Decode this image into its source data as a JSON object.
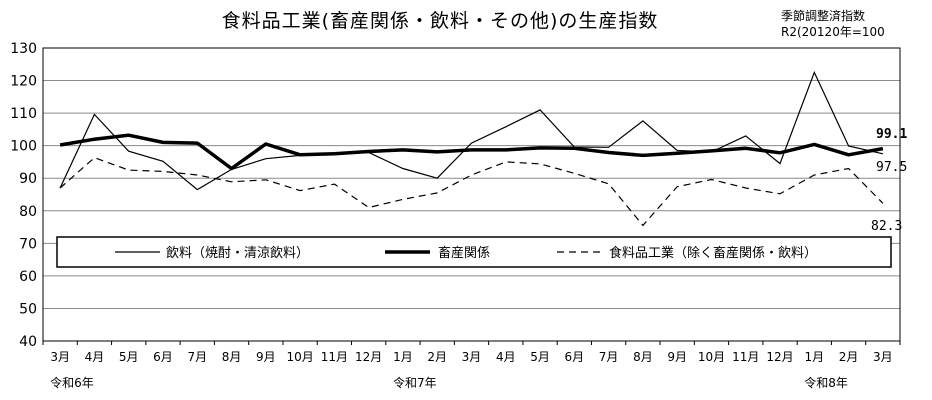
{
  "chart_data": {
    "type": "line",
    "title": "食料品工業(畜産関係・飲料・その他)の生産指数",
    "notes": [
      "季節調整済指数",
      "R2(20120年=100"
    ],
    "ylim": [
      40,
      130
    ],
    "yticks": [
      40,
      50,
      60,
      70,
      80,
      90,
      100,
      110,
      120,
      130
    ],
    "grid": true,
    "legend": "inside-top",
    "x": [
      "3月",
      "4月",
      "5月",
      "6月",
      "7月",
      "8月",
      "9月",
      "10月",
      "11月",
      "12月",
      "1月",
      "2月",
      "3月",
      "4月",
      "5月",
      "6月",
      "7月",
      "8月",
      "9月",
      "10月",
      "11月",
      "12月",
      "1月",
      "2月",
      "3月"
    ],
    "era_labels": [
      {
        "index": 0,
        "label": "令和6年"
      },
      {
        "index": 10,
        "label": "令和7年"
      },
      {
        "index": 22,
        "label": "令和8年"
      }
    ],
    "series": [
      {
        "name": "飲料（焼酎・清涼飲料）",
        "style": "thin",
        "values": [
          87,
          109.6,
          98.3,
          95.2,
          86.5,
          92.7,
          96,
          97,
          97.8,
          97.9,
          93,
          90,
          100.8,
          105.8,
          111,
          99.6,
          99.5,
          107.6,
          98.5,
          98.1,
          103,
          94.5,
          122.5,
          99.9,
          97.5
        ]
      },
      {
        "name": "畜産関係",
        "style": "thick",
        "values": [
          100.2,
          102,
          103.2,
          101,
          100.8,
          93,
          100.5,
          97.2,
          97.5,
          98.2,
          98.7,
          98.1,
          98.7,
          98.7,
          99.3,
          99.2,
          97.9,
          97,
          97.7,
          98.4,
          99.2,
          97.8,
          100.4,
          97.2,
          99.1
        ]
      },
      {
        "name": "食料品工業（除く畜産関係・飲料）",
        "style": "dashed",
        "values": [
          87,
          96.3,
          92.5,
          92.1,
          91,
          88.9,
          89.5,
          86.2,
          88.2,
          81,
          83.5,
          85.5,
          91,
          95,
          94.4,
          91.5,
          88.3,
          75.5,
          87.4,
          89.6,
          87,
          85.2,
          91,
          93,
          82.3
        ]
      }
    ],
    "end_labels": [
      "99.1",
      "97.5",
      "82.3"
    ]
  }
}
